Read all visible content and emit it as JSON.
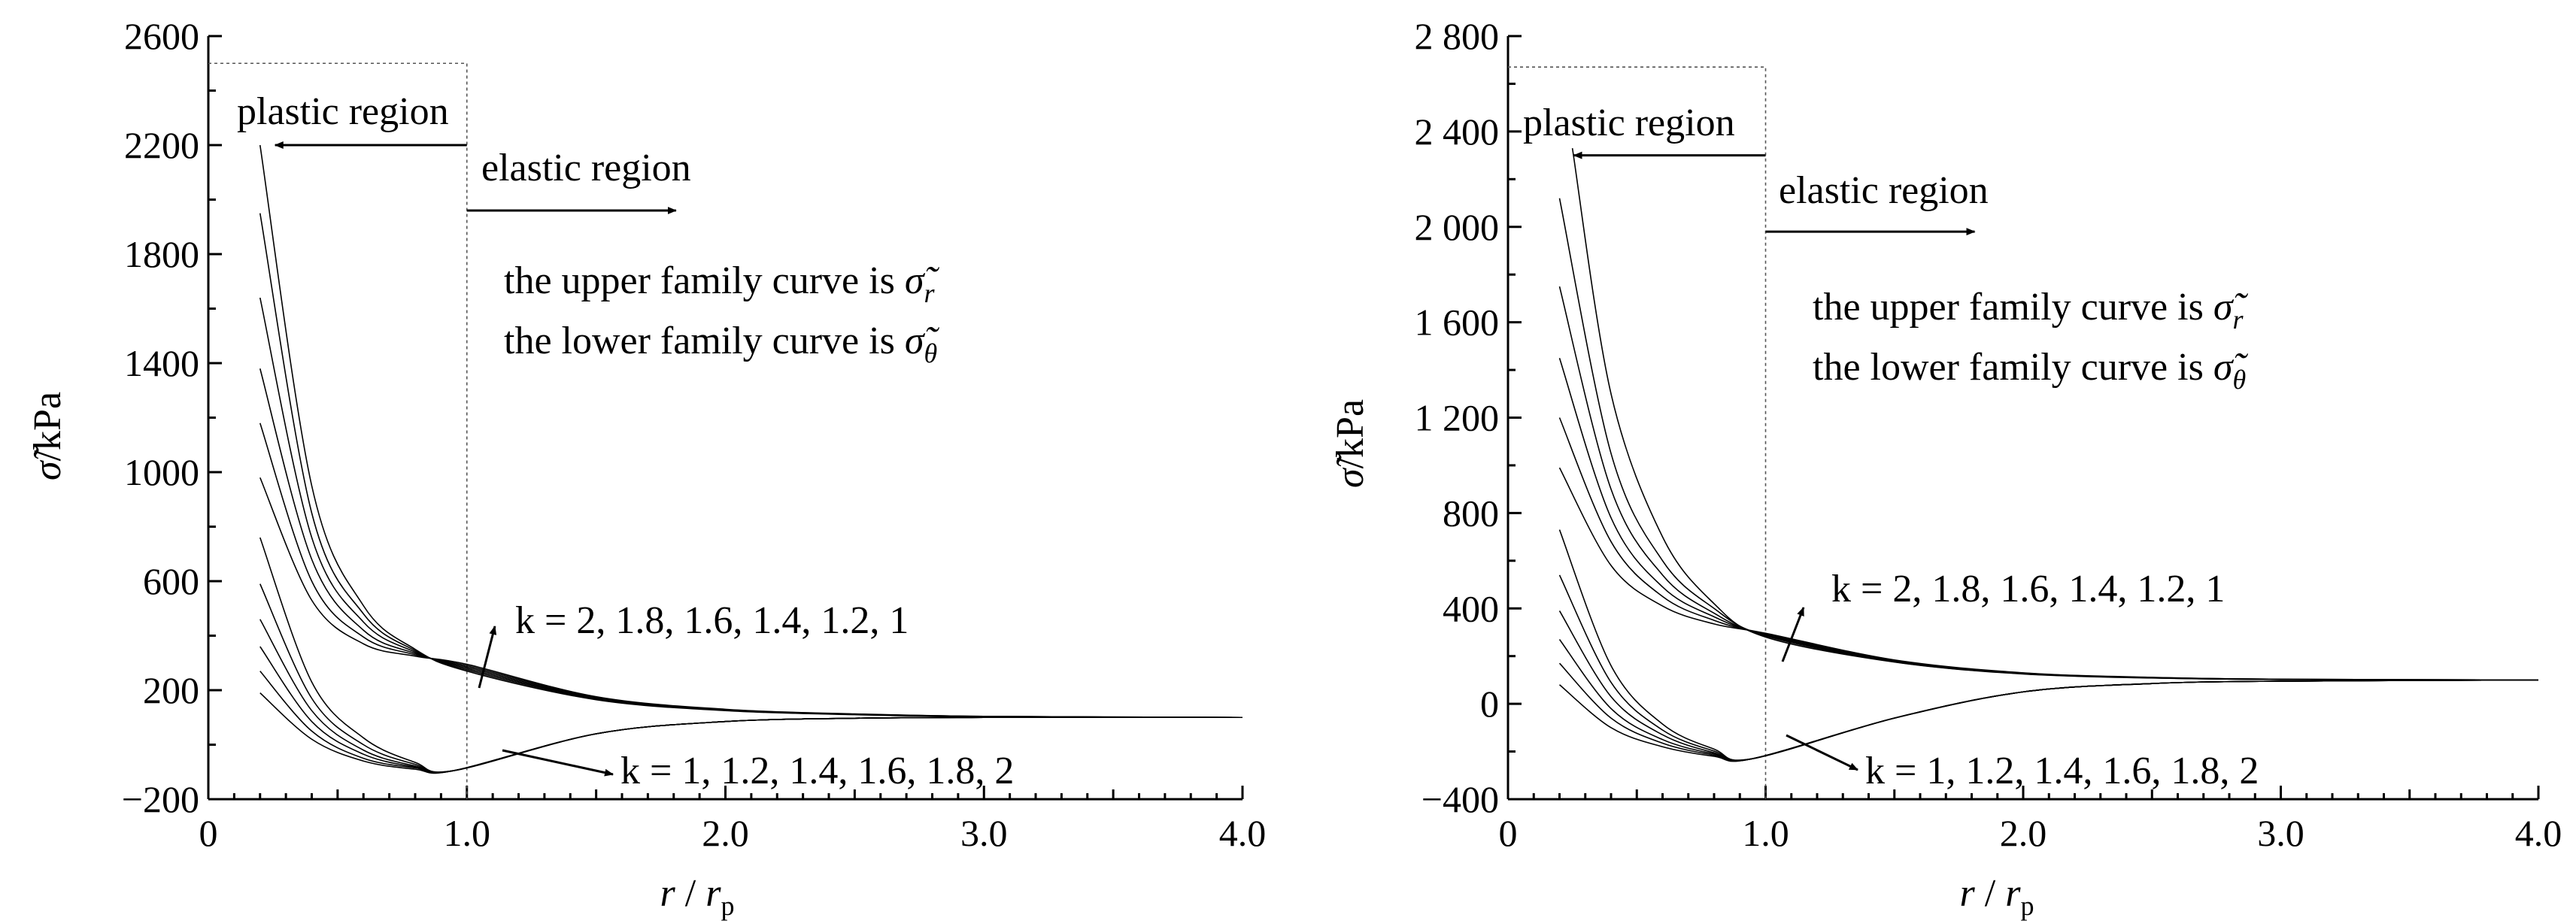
{
  "chart_data": [
    {
      "type": "line",
      "panel": "left",
      "xlabel": "r / r_p",
      "ylabel": "σ̃/kPa",
      "xlim": [
        0,
        4.0
      ],
      "ylim": [
        -200,
        2600
      ],
      "xticks": [
        0,
        1.0,
        2.0,
        3.0,
        4.0
      ],
      "xtick_labels": [
        "0",
        "1.0",
        "2.0",
        "3.0",
        "4.0"
      ],
      "yticks": [
        -200,
        200,
        600,
        1000,
        1400,
        1800,
        2200,
        2600
      ],
      "ytick_labels": [
        "−200",
        "200",
        "600",
        "1000",
        "1400",
        "1800",
        "2200",
        "2600"
      ],
      "grid": false,
      "k_values": [
        2,
        1.8,
        1.6,
        1.4,
        1.2,
        1
      ],
      "series": [
        {
          "x": [
            0.2,
            0.4,
            0.6,
            0.8,
            1.0,
            1.5,
            2.0,
            2.5,
            3.0,
            4.0
          ],
          "y": [
            2200,
            950,
            510,
            350,
            270,
            165,
            125,
            110,
            103,
            100
          ]
        },
        {
          "x": [
            0.2,
            0.4,
            0.6,
            0.8,
            1.0,
            1.5,
            2.0,
            2.5,
            3.0,
            4.0
          ],
          "y": [
            1950,
            850,
            480,
            345,
            275,
            168,
            126,
            111,
            103,
            100
          ]
        },
        {
          "x": [
            0.2,
            0.4,
            0.6,
            0.8,
            1.0,
            1.5,
            2.0,
            2.5,
            3.0,
            4.0
          ],
          "y": [
            1640,
            760,
            450,
            340,
            280,
            170,
            127,
            111,
            103,
            100
          ]
        },
        {
          "x": [
            0.2,
            0.4,
            0.6,
            0.8,
            1.0,
            1.5,
            2.0,
            2.5,
            3.0,
            4.0
          ],
          "y": [
            1380,
            680,
            420,
            335,
            285,
            172,
            128,
            112,
            104,
            100
          ]
        },
        {
          "x": [
            0.2,
            0.4,
            0.6,
            0.8,
            1.0,
            1.5,
            2.0,
            2.5,
            3.0,
            4.0
          ],
          "y": [
            1180,
            600,
            395,
            330,
            290,
            174,
            129,
            112,
            104,
            100
          ]
        },
        {
          "x": [
            0.2,
            0.4,
            0.6,
            0.8,
            1.0,
            1.5,
            2.0,
            2.5,
            3.0,
            4.0
          ],
          "y": [
            980,
            530,
            370,
            325,
            295,
            176,
            130,
            113,
            104,
            100
          ]
        },
        {
          "x": [
            0.2,
            0.4,
            0.6,
            0.8,
            0.95,
            1.5,
            2.0,
            2.5,
            3.0,
            4.0
          ],
          "y": [
            190,
            20,
            -60,
            -90,
            -95,
            40,
            85,
            97,
            100,
            100
          ]
        },
        {
          "x": [
            0.2,
            0.4,
            0.6,
            0.8,
            0.95,
            1.5,
            2.0,
            2.5,
            3.0,
            4.0
          ],
          "y": [
            270,
            50,
            -50,
            -85,
            -95,
            40,
            85,
            97,
            100,
            100
          ]
        },
        {
          "x": [
            0.2,
            0.4,
            0.6,
            0.8,
            0.95,
            1.5,
            2.0,
            2.5,
            3.0,
            4.0
          ],
          "y": [
            360,
            85,
            -35,
            -82,
            -95,
            40,
            85,
            97,
            100,
            100
          ]
        },
        {
          "x": [
            0.2,
            0.4,
            0.6,
            0.8,
            0.95,
            1.5,
            2.0,
            2.5,
            3.0,
            4.0
          ],
          "y": [
            460,
            125,
            -20,
            -78,
            -95,
            40,
            85,
            97,
            100,
            100
          ]
        },
        {
          "x": [
            0.2,
            0.4,
            0.6,
            0.8,
            0.95,
            1.5,
            2.0,
            2.5,
            3.0,
            4.0
          ],
          "y": [
            590,
            170,
            0,
            -72,
            -95,
            40,
            85,
            97,
            100,
            100
          ]
        },
        {
          "x": [
            0.2,
            0.4,
            0.6,
            0.8,
            0.95,
            1.5,
            2.0,
            2.5,
            3.0,
            4.0
          ],
          "y": [
            760,
            230,
            25,
            -65,
            -95,
            40,
            85,
            97,
            100,
            100
          ]
        }
      ],
      "annotations": {
        "plastic": "plastic region",
        "elastic": "elastic region",
        "upper_text": "the upper family curve is",
        "upper_symbol": "σ̃",
        "upper_sub": "r",
        "lower_text": "the lower family curve is",
        "lower_symbol": "σ̃",
        "lower_sub": "θ",
        "upper_k": "k = 2, 1.8, 1.6, 1.4, 1.2, 1",
        "lower_k": "k = 1, 1.2, 1.4, 1.6, 1.8, 2"
      },
      "guide_y": 2500,
      "guide_x": 1.0,
      "plastic_arrow_y": 2200,
      "elastic_arrow_y": 1960
    },
    {
      "type": "line",
      "panel": "right",
      "xlabel": "r / r_p",
      "ylabel": "σ̃/kPa",
      "xlim": [
        0,
        4.0
      ],
      "ylim": [
        -400,
        2800
      ],
      "xticks": [
        0,
        1.0,
        2.0,
        3.0,
        4.0
      ],
      "xtick_labels": [
        "0",
        "1.0",
        "2.0",
        "3.0",
        "4.0"
      ],
      "yticks": [
        -400,
        0,
        400,
        800,
        1200,
        1600,
        2000,
        2400,
        2800
      ],
      "ytick_labels": [
        "−400",
        "0",
        "400",
        "800",
        "1 200",
        "1 600",
        "2 000",
        "2 400",
        "2 800"
      ],
      "grid": false,
      "k_values": [
        2,
        1.8,
        1.6,
        1.4,
        1.2,
        1
      ],
      "series": [
        {
          "x": [
            0.25,
            0.4,
            0.6,
            0.8,
            1.0,
            1.5,
            2.0,
            2.5,
            3.0,
            4.0
          ],
          "y": [
            2330,
            1300,
            700,
            420,
            280,
            175,
            125,
            108,
            102,
            100
          ]
        },
        {
          "x": [
            0.2,
            0.4,
            0.6,
            0.8,
            1.0,
            1.5,
            2.0,
            2.5,
            3.0,
            4.0
          ],
          "y": [
            2120,
            1050,
            600,
            400,
            285,
            176,
            126,
            109,
            102,
            100
          ]
        },
        {
          "x": [
            0.2,
            0.4,
            0.6,
            0.8,
            1.0,
            1.5,
            2.0,
            2.5,
            3.0,
            4.0
          ],
          "y": [
            1750,
            900,
            540,
            380,
            288,
            178,
            127,
            109,
            102,
            100
          ]
        },
        {
          "x": [
            0.2,
            0.4,
            0.6,
            0.8,
            1.0,
            1.5,
            2.0,
            2.5,
            3.0,
            4.0
          ],
          "y": [
            1450,
            780,
            490,
            365,
            290,
            180,
            128,
            110,
            103,
            100
          ]
        },
        {
          "x": [
            0.2,
            0.4,
            0.6,
            0.8,
            1.0,
            1.5,
            2.0,
            2.5,
            3.0,
            4.0
          ],
          "y": [
            1200,
            680,
            450,
            350,
            293,
            182,
            129,
            110,
            103,
            100
          ]
        },
        {
          "x": [
            0.2,
            0.4,
            0.6,
            0.8,
            1.0,
            1.5,
            2.0,
            2.5,
            3.0,
            4.0
          ],
          "y": [
            990,
            580,
            410,
            335,
            296,
            184,
            130,
            111,
            103,
            100
          ]
        },
        {
          "x": [
            0.2,
            0.4,
            0.6,
            0.8,
            0.95,
            1.5,
            2.0,
            2.5,
            3.0,
            4.0
          ],
          "y": [
            80,
            -100,
            -180,
            -220,
            -230,
            -60,
            50,
            85,
            95,
            100
          ]
        },
        {
          "x": [
            0.2,
            0.4,
            0.6,
            0.8,
            0.95,
            1.5,
            2.0,
            2.5,
            3.0,
            4.0
          ],
          "y": [
            170,
            -60,
            -165,
            -215,
            -230,
            -60,
            50,
            85,
            95,
            100
          ]
        },
        {
          "x": [
            0.2,
            0.4,
            0.6,
            0.8,
            0.95,
            1.5,
            2.0,
            2.5,
            3.0,
            4.0
          ],
          "y": [
            270,
            -20,
            -150,
            -210,
            -230,
            -60,
            50,
            85,
            95,
            100
          ]
        },
        {
          "x": [
            0.2,
            0.4,
            0.6,
            0.8,
            0.95,
            1.5,
            2.0,
            2.5,
            3.0,
            4.0
          ],
          "y": [
            390,
            30,
            -130,
            -205,
            -230,
            -60,
            50,
            85,
            95,
            100
          ]
        },
        {
          "x": [
            0.2,
            0.4,
            0.6,
            0.8,
            0.95,
            1.5,
            2.0,
            2.5,
            3.0,
            4.0
          ],
          "y": [
            540,
            90,
            -110,
            -198,
            -230,
            -60,
            50,
            85,
            95,
            100
          ]
        },
        {
          "x": [
            0.2,
            0.4,
            0.6,
            0.8,
            0.95,
            1.5,
            2.0,
            2.5,
            3.0,
            4.0
          ],
          "y": [
            730,
            160,
            -85,
            -190,
            -230,
            -60,
            50,
            85,
            95,
            100
          ]
        }
      ],
      "annotations": {
        "plastic": "plastic region",
        "elastic": "elastic region",
        "upper_text": "the upper family curve is",
        "upper_symbol": "σ̃",
        "upper_sub": "r",
        "lower_text": "the lower family curve is",
        "lower_symbol": "σ̃",
        "lower_sub": "θ",
        "upper_k": "k = 2, 1.8, 1.6, 1.4, 1.2, 1",
        "lower_k": "k = 1, 1.2, 1.4, 1.6, 1.8, 2"
      },
      "guide_y": 2670,
      "guide_x": 1.0,
      "plastic_arrow_y": 2300,
      "elastic_arrow_y": 1980
    }
  ]
}
